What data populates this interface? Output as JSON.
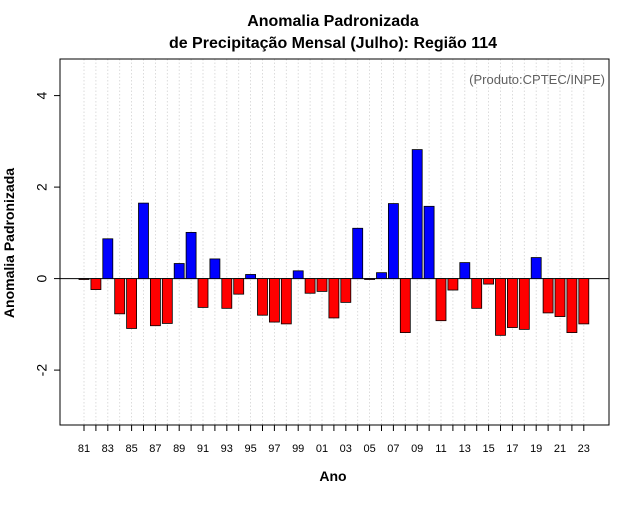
{
  "chart_data": {
    "type": "bar",
    "title_line1": "Anomalia Padronizada",
    "title_line2": "de Precipitação Mensal (Julho): Região 114",
    "xlabel": "Ano",
    "ylabel": "Anomalia Padronizada",
    "annotation": "(Produto:CPTEC/INPE)",
    "ylim": [
      -3.2,
      4.8
    ],
    "yticks": [
      -2,
      0,
      2,
      4
    ],
    "grid": true,
    "colors": {
      "positive": "#0000ff",
      "negative": "#ff0000",
      "outline": "#000000",
      "grid": "#d3d3d3"
    },
    "x_tick_labels": [
      "81",
      "83",
      "85",
      "87",
      "89",
      "91",
      "93",
      "95",
      "97",
      "99",
      "01",
      "03",
      "05",
      "07",
      "09",
      "11",
      "13",
      "15",
      "17",
      "19",
      "21",
      "23"
    ],
    "categories": [
      "1981",
      "1982",
      "1983",
      "1984",
      "1985",
      "1986",
      "1987",
      "1988",
      "1989",
      "1990",
      "1991",
      "1992",
      "1993",
      "1994",
      "1995",
      "1996",
      "1997",
      "1998",
      "1999",
      "2000",
      "2001",
      "2002",
      "2003",
      "2004",
      "2005",
      "2006",
      "2007",
      "2008",
      "2009",
      "2010",
      "2011",
      "2012",
      "2013",
      "2014",
      "2015",
      "2016",
      "2017",
      "2018",
      "2019",
      "2020",
      "2021",
      "2022",
      "2023"
    ],
    "values": [
      -0.02,
      -0.24,
      0.87,
      -0.77,
      -1.09,
      1.65,
      -1.03,
      -0.98,
      0.33,
      1.01,
      -0.63,
      0.43,
      -0.65,
      -0.34,
      0.09,
      -0.8,
      -0.95,
      -0.99,
      0.17,
      -0.32,
      -0.28,
      -0.86,
      -0.52,
      1.1,
      -0.02,
      0.13,
      1.64,
      -1.18,
      2.82,
      1.58,
      -0.92,
      -0.25,
      0.35,
      -0.65,
      -0.12,
      -1.24,
      -1.07,
      -1.11,
      0.46,
      -0.75,
      -0.83,
      -1.18,
      -0.99
    ]
  }
}
